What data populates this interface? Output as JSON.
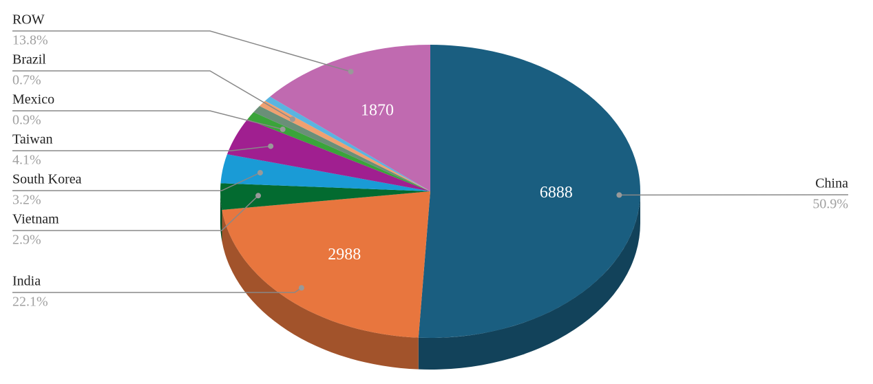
{
  "chart_data": {
    "type": "pie3d",
    "categories": [
      "China",
      "India",
      "Vietnam",
      "South Korea",
      "Taiwan",
      "Mexico",
      null,
      "Brazil",
      null,
      "ROW"
    ],
    "values": [
      6888,
      2988,
      392,
      433,
      555,
      122,
      110,
      95,
      80,
      1870
    ],
    "percent_labels": [
      "50.9%",
      "22.1%",
      "2.9%",
      "3.2%",
      "4.1%",
      "0.9%",
      null,
      "0.7%",
      null,
      "13.8%"
    ],
    "colors": [
      "#1a5e80",
      "#e8763e",
      "#036b30",
      "#1a9bd6",
      "#a01f90",
      "#3aa43a",
      "#6a8f78",
      "#f0a070",
      "#5ab4e0",
      "#c06ab0"
    ]
  }
}
